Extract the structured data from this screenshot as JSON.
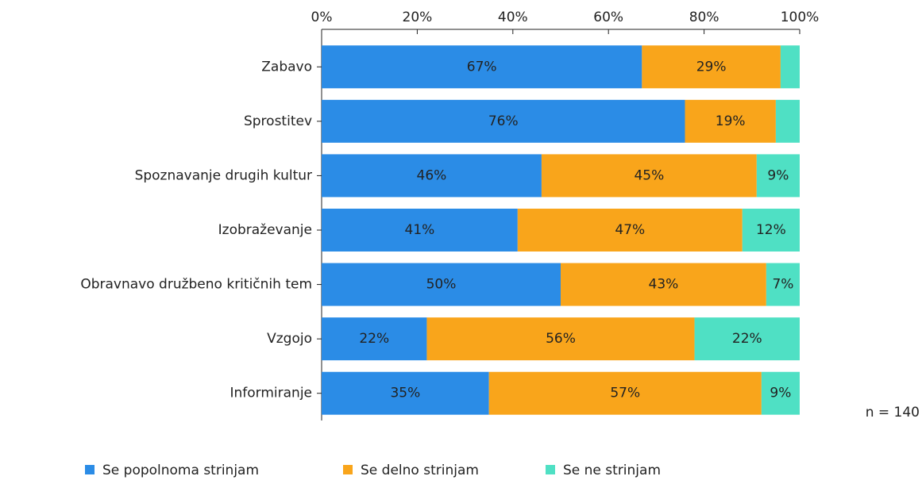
{
  "chart_data": {
    "type": "stacked-bar-horizontal",
    "categories": [
      "Zabavo",
      "Sprostitev",
      "Spoznavanje drugih kultur",
      "Izobraževanje",
      "Obravnavo družbeno kritičnih tem",
      "Vzgojo",
      "Informiranje"
    ],
    "series": [
      {
        "name": "Se popolnoma strinjam",
        "color": "#2b8ce6",
        "values": [
          67,
          76,
          46,
          41,
          50,
          22,
          35
        ],
        "value_labels": [
          "67%",
          "76%",
          "46%",
          "41%",
          "50%",
          "22%",
          "35%"
        ]
      },
      {
        "name": "Se delno strinjam",
        "color": "#f9a51b",
        "values": [
          29,
          19,
          45,
          47,
          43,
          56,
          57
        ],
        "value_labels": [
          "29%",
          "19%",
          "45%",
          "47%",
          "43%",
          "56%",
          "57%"
        ]
      },
      {
        "name": "Se ne strinjam",
        "color": "#4fe0c4",
        "values": [
          4,
          5,
          9,
          12,
          7,
          22,
          9
        ],
        "value_labels": [
          null,
          null,
          "9%",
          "12%",
          "7%",
          "22%",
          "9%"
        ]
      }
    ],
    "xlim": [
      0,
      100
    ],
    "xticks": [
      {
        "value": 0,
        "label": "0%"
      },
      {
        "value": 20,
        "label": "20%"
      },
      {
        "value": 40,
        "label": "40%"
      },
      {
        "value": 60,
        "label": "60%"
      },
      {
        "value": 80,
        "label": "80%"
      },
      {
        "value": 100,
        "label": "100%"
      }
    ],
    "annotation": "n = 140"
  }
}
